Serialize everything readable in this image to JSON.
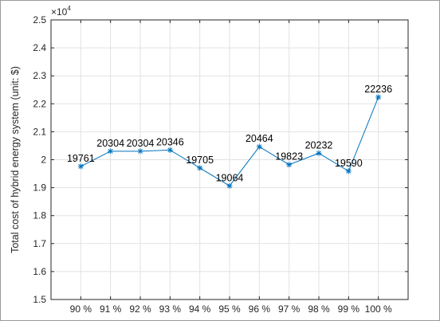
{
  "chart_data": {
    "type": "line",
    "categories": [
      "90 %",
      "91 %",
      "92 %",
      "93 %",
      "94 %",
      "95 %",
      "96 %",
      "97 %",
      "98 %",
      "99 %",
      "100 %"
    ],
    "series": [
      {
        "values": [
          19761,
          20304,
          20304,
          20346,
          19705,
          19064,
          20464,
          19823,
          20232,
          19590,
          22236
        ],
        "labels": [
          "19761",
          "20304",
          "20304",
          "20346",
          "19705",
          "19064",
          "20464",
          "19823",
          "20232",
          "19590",
          "22236"
        ]
      }
    ],
    "ylabel": "Total cost of hybrid energy system  (unit: $)",
    "xlabel": "",
    "y_multiplier_label": "×10",
    "y_multiplier_exponent": "4",
    "ylim": [
      1.5,
      2.5
    ],
    "yticks": [
      "1.5",
      "1.6",
      "1.7",
      "1.8",
      "1.9",
      "2",
      "2.1",
      "2.2",
      "2.3",
      "2.4",
      "2.5"
    ],
    "y_scale": 10000,
    "grid": true,
    "line_color": "#0072BD",
    "marker": "asterisk"
  }
}
